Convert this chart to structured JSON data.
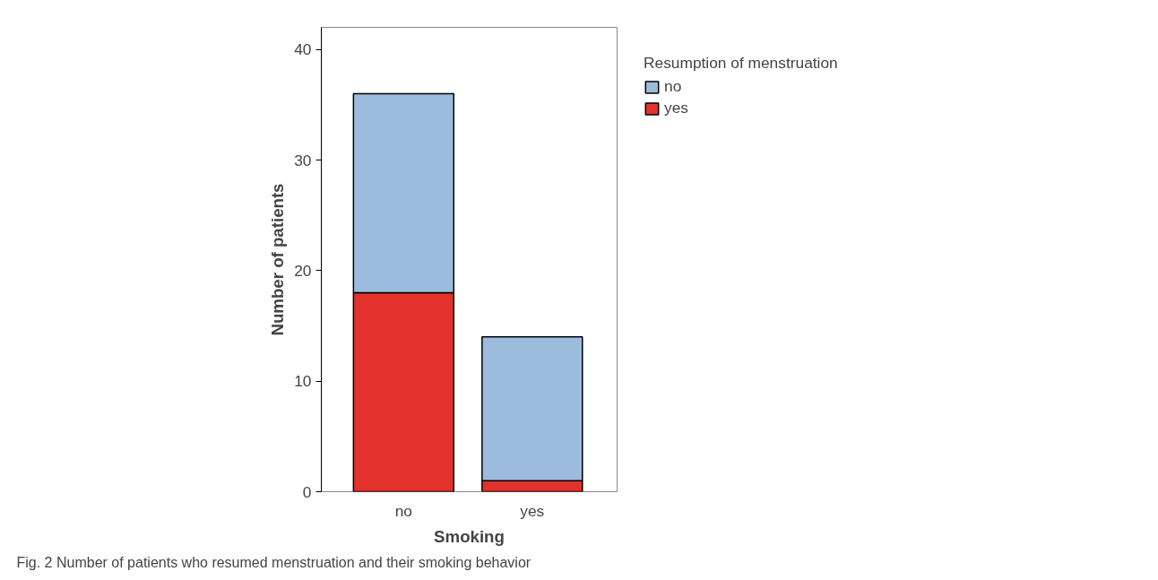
{
  "chart_data": {
    "type": "bar",
    "stacked": true,
    "categories": [
      "no",
      "yes"
    ],
    "xlabel": "Smoking",
    "ylabel": "Number of patients",
    "legend_title": "Resumption of menstruation",
    "legend": "right",
    "grid": false,
    "series": [
      {
        "name": "yes",
        "color": "#e3322b",
        "values": [
          18,
          1
        ]
      },
      {
        "name": "no",
        "color": "#9bbcdd",
        "values": [
          18,
          13
        ]
      }
    ],
    "ylim": [
      0,
      42
    ],
    "yticks": [
      0,
      10,
      20,
      30,
      40
    ],
    "annotations": [
      "Fig. 2 Number of patients who resumed menstruation and their smoking behavior"
    ]
  }
}
